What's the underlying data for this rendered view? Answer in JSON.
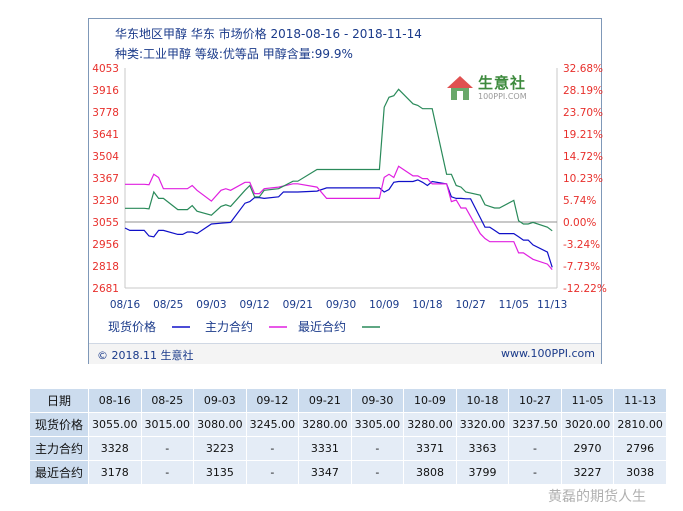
{
  "header": {
    "line1": "华东地区甲醇 华东 市场价格 2018-08-16 - 2018-11-14",
    "line2": "种类:工业甲醇 等级:优等品 甲醇含量:99.9%"
  },
  "watermark": {
    "name": "生意社",
    "url": "100PPI.COM"
  },
  "footer": {
    "left": "© 2018.11 生意社",
    "right": "www.100PPI.com"
  },
  "colors": {
    "spot": "#1010c8",
    "main": "#e020e0",
    "near": "#2a8a5a",
    "axis_text": "#e8302c",
    "brand": "#1a3a8a"
  },
  "chart_data": {
    "type": "line",
    "x_ticks": [
      "08/16",
      "08/25",
      "09/03",
      "09/12",
      "09/21",
      "09/30",
      "10/09",
      "10/18",
      "10/27",
      "11/05",
      "11/13"
    ],
    "y_left_ticks": [
      "4053",
      "3916",
      "3778",
      "3641",
      "3504",
      "3367",
      "3230",
      "3055",
      "2956",
      "2818",
      "2681"
    ],
    "y_right_ticks": [
      "32.68%",
      "28.19%",
      "23.70%",
      "19.21%",
      "14.72%",
      "10.23%",
      "5.74%",
      "0.00%",
      "-3.24%",
      "-7.73%",
      "-12.22%"
    ],
    "ylim": [
      2681,
      4053
    ],
    "baseline": 3055,
    "legend": [
      {
        "label": "现货价格",
        "color": "#1010c8"
      },
      {
        "label": "主力合约",
        "color": "#e020e0"
      },
      {
        "label": "最近合约",
        "color": "#2a8a5a"
      }
    ],
    "series": [
      {
        "name": "现货价格",
        "color": "#1010c8",
        "points": [
          [
            "08-16",
            3055
          ],
          [
            "08-17",
            3040
          ],
          [
            "08-20",
            3040
          ],
          [
            "08-21",
            3005
          ],
          [
            "08-22",
            3000
          ],
          [
            "08-23",
            3040
          ],
          [
            "08-24",
            3040
          ],
          [
            "08-27",
            3015
          ],
          [
            "08-28",
            3015
          ],
          [
            "08-29",
            3030
          ],
          [
            "08-30",
            3030
          ],
          [
            "08-31",
            3020
          ],
          [
            "09-03",
            3080
          ],
          [
            "09-05",
            3085
          ],
          [
            "09-07",
            3090
          ],
          [
            "09-10",
            3210
          ],
          [
            "09-11",
            3220
          ],
          [
            "09-12",
            3245
          ],
          [
            "09-13",
            3245
          ],
          [
            "09-14",
            3240
          ],
          [
            "09-17",
            3250
          ],
          [
            "09-18",
            3280
          ],
          [
            "09-20",
            3280
          ],
          [
            "09-21",
            3280
          ],
          [
            "09-25",
            3285
          ],
          [
            "09-27",
            3305
          ],
          [
            "09-30",
            3305
          ],
          [
            "10-08",
            3305
          ],
          [
            "10-09",
            3280
          ],
          [
            "10-10",
            3295
          ],
          [
            "10-11",
            3340
          ],
          [
            "10-12",
            3345
          ],
          [
            "10-15",
            3345
          ],
          [
            "10-16",
            3355
          ],
          [
            "10-17",
            3340
          ],
          [
            "10-18",
            3320
          ],
          [
            "10-19",
            3345
          ],
          [
            "10-22",
            3330
          ],
          [
            "10-23",
            3250
          ],
          [
            "10-24",
            3240
          ],
          [
            "10-25",
            3240
          ],
          [
            "10-26",
            3237.5
          ],
          [
            "10-27",
            3237.5
          ],
          [
            "10-29",
            3120
          ],
          [
            "10-30",
            3060
          ],
          [
            "10-31",
            3060
          ],
          [
            "11-01",
            3040
          ],
          [
            "11-02",
            3020
          ],
          [
            "11-05",
            3020
          ],
          [
            "11-06",
            3000
          ],
          [
            "11-07",
            2980
          ],
          [
            "11-08",
            2980
          ],
          [
            "11-09",
            2950
          ],
          [
            "11-12",
            2905
          ],
          [
            "11-13",
            2810
          ]
        ]
      },
      {
        "name": "主力合约",
        "color": "#e020e0",
        "points": [
          [
            "08-16",
            3328
          ],
          [
            "08-20",
            3328
          ],
          [
            "08-21",
            3325
          ],
          [
            "08-22",
            3390
          ],
          [
            "08-23",
            3370
          ],
          [
            "08-24",
            3300
          ],
          [
            "08-27",
            3300
          ],
          [
            "08-29",
            3300
          ],
          [
            "08-30",
            3320
          ],
          [
            "08-31",
            3290
          ],
          [
            "09-03",
            3223
          ],
          [
            "09-05",
            3290
          ],
          [
            "09-06",
            3300
          ],
          [
            "09-07",
            3290
          ],
          [
            "09-10",
            3340
          ],
          [
            "09-11",
            3340
          ],
          [
            "09-12",
            3270
          ],
          [
            "09-13",
            3270
          ],
          [
            "09-14",
            3300
          ],
          [
            "09-17",
            3310
          ],
          [
            "09-20",
            3331
          ],
          [
            "09-21",
            3331
          ],
          [
            "09-25",
            3310
          ],
          [
            "09-27",
            3240
          ],
          [
            "09-30",
            3240
          ],
          [
            "10-08",
            3240
          ],
          [
            "10-09",
            3371
          ],
          [
            "10-10",
            3390
          ],
          [
            "10-11",
            3370
          ],
          [
            "10-12",
            3440
          ],
          [
            "10-15",
            3380
          ],
          [
            "10-16",
            3380
          ],
          [
            "10-17",
            3363
          ],
          [
            "10-18",
            3363
          ],
          [
            "10-19",
            3330
          ],
          [
            "10-22",
            3330
          ],
          [
            "10-23",
            3220
          ],
          [
            "10-24",
            3230
          ],
          [
            "10-25",
            3180
          ],
          [
            "10-26",
            3180
          ],
          [
            "10-29",
            3020
          ],
          [
            "10-30",
            2990
          ],
          [
            "10-31",
            2970
          ],
          [
            "11-01",
            2970
          ],
          [
            "11-02",
            2970
          ],
          [
            "11-05",
            2970
          ],
          [
            "11-06",
            2900
          ],
          [
            "11-07",
            2900
          ],
          [
            "11-08",
            2880
          ],
          [
            "11-09",
            2860
          ],
          [
            "11-12",
            2830
          ],
          [
            "11-13",
            2796
          ]
        ]
      },
      {
        "name": "最近合约",
        "color": "#2a8a5a",
        "points": [
          [
            "08-16",
            3178
          ],
          [
            "08-20",
            3178
          ],
          [
            "08-21",
            3175
          ],
          [
            "08-22",
            3280
          ],
          [
            "08-23",
            3240
          ],
          [
            "08-24",
            3240
          ],
          [
            "08-27",
            3170
          ],
          [
            "08-29",
            3170
          ],
          [
            "08-30",
            3195
          ],
          [
            "08-31",
            3160
          ],
          [
            "09-03",
            3135
          ],
          [
            "09-05",
            3190
          ],
          [
            "09-06",
            3200
          ],
          [
            "09-07",
            3190
          ],
          [
            "09-10",
            3290
          ],
          [
            "09-11",
            3320
          ],
          [
            "09-12",
            3250
          ],
          [
            "09-13",
            3250
          ],
          [
            "09-14",
            3290
          ],
          [
            "09-17",
            3300
          ],
          [
            "09-20",
            3347
          ],
          [
            "09-21",
            3347
          ],
          [
            "09-25",
            3420
          ],
          [
            "09-27",
            3420
          ],
          [
            "09-30",
            3420
          ],
          [
            "10-08",
            3420
          ],
          [
            "10-09",
            3808
          ],
          [
            "10-10",
            3870
          ],
          [
            "10-11",
            3880
          ],
          [
            "10-12",
            3920
          ],
          [
            "10-15",
            3830
          ],
          [
            "10-16",
            3820
          ],
          [
            "10-17",
            3799
          ],
          [
            "10-18",
            3799
          ],
          [
            "10-19",
            3799
          ],
          [
            "10-22",
            3390
          ],
          [
            "10-23",
            3390
          ],
          [
            "10-24",
            3320
          ],
          [
            "10-25",
            3310
          ],
          [
            "10-26",
            3280
          ],
          [
            "10-29",
            3260
          ],
          [
            "10-30",
            3200
          ],
          [
            "10-31",
            3190
          ],
          [
            "11-01",
            3180
          ],
          [
            "11-02",
            3180
          ],
          [
            "11-05",
            3227
          ],
          [
            "11-06",
            3100
          ],
          [
            "11-07",
            3080
          ],
          [
            "11-08",
            3080
          ],
          [
            "11-09",
            3090
          ],
          [
            "11-12",
            3060
          ],
          [
            "11-13",
            3038
          ]
        ]
      }
    ]
  },
  "table": {
    "headers": [
      "日期",
      "08-16",
      "08-25",
      "09-03",
      "09-12",
      "09-21",
      "09-30",
      "10-09",
      "10-18",
      "10-27",
      "11-05",
      "11-13"
    ],
    "rows": [
      [
        "现货价格",
        "3055.00",
        "3015.00",
        "3080.00",
        "3245.00",
        "3280.00",
        "3305.00",
        "3280.00",
        "3320.00",
        "3237.50",
        "3020.00",
        "2810.00"
      ],
      [
        "主力合约",
        "3328",
        "-",
        "3223",
        "-",
        "3331",
        "-",
        "3371",
        "3363",
        "-",
        "2970",
        "2796"
      ],
      [
        "最近合约",
        "3178",
        "-",
        "3135",
        "-",
        "3347",
        "-",
        "3808",
        "3799",
        "-",
        "3227",
        "3038"
      ]
    ]
  },
  "corner_mark": "黄磊的期货人生"
}
